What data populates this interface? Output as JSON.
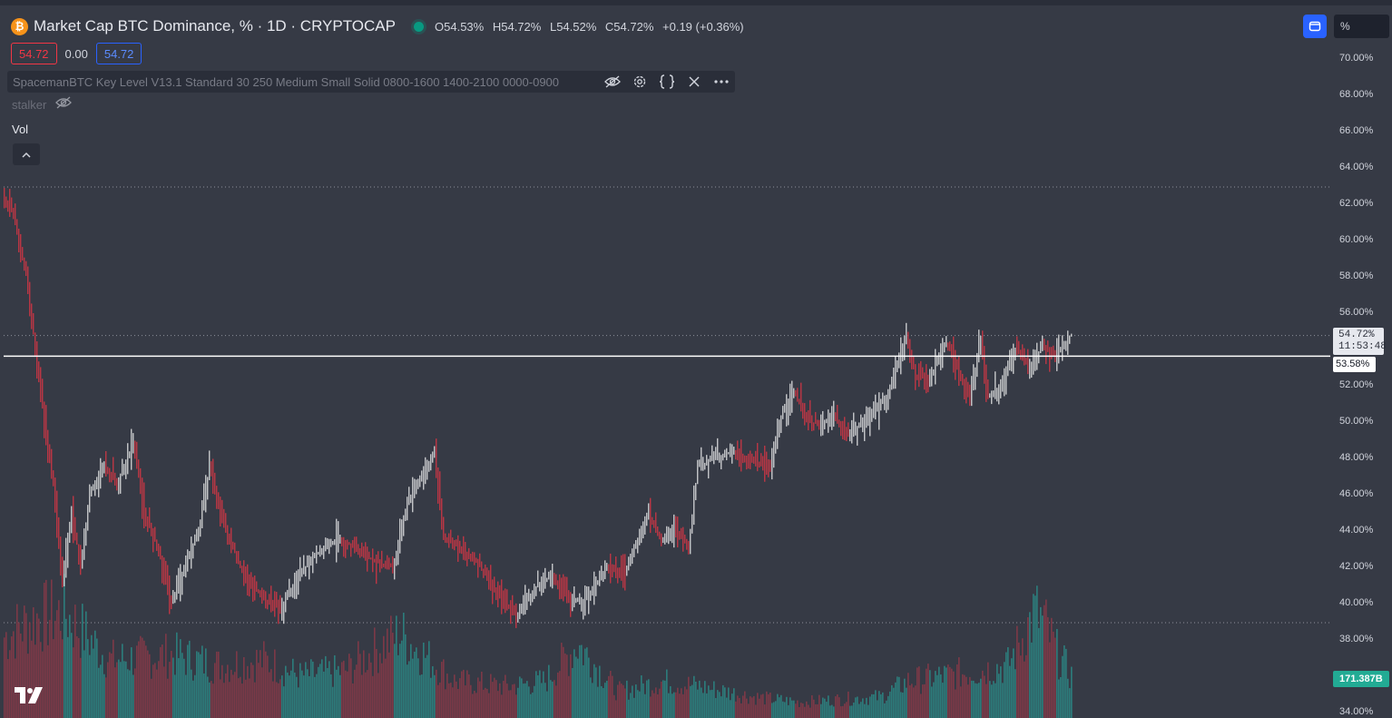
{
  "header": {
    "coin_symbol": "₿",
    "title": "Market Cap BTC Dominance, % · 1D · CRYPTOCAP",
    "ohlc": [
      {
        "label": "O",
        "value": "54.53%"
      },
      {
        "label": "H",
        "value": "54.72%"
      },
      {
        "label": "L",
        "value": "54.52%"
      },
      {
        "label": "C",
        "value": "54.72%"
      }
    ],
    "change": "+0.19 (+0.36%)"
  },
  "price_boxes": {
    "sell": "54.72",
    "spread": "0.00",
    "buy": "54.72"
  },
  "indicator": {
    "name": "SpacemanBTC Key Level V13.1 Standard 30 250 Medium Small Solid 0800-1600 1400-2100 0000-0900"
  },
  "stalker": {
    "name": "stalker"
  },
  "volume_label": "Vol",
  "axis": {
    "unit": "%",
    "price_tag": {
      "value": "54.72%",
      "countdown": "11:53:48"
    },
    "level_tag": "53.58%",
    "volume_tag": "171.387B"
  },
  "colors": {
    "background": "#363a45",
    "up": "#ffffff",
    "down": "#f23645",
    "vol_up": "#2a8a86",
    "vol_down": "#8a3a48",
    "accent": "#2962ff"
  },
  "chart_data": {
    "type": "line",
    "title": "Market Cap BTC Dominance, % · 1D · CRYPTOCAP",
    "ylabel": "%",
    "ylim": [
      34,
      72
    ],
    "y_ticks": [
      "70.00%",
      "68.00%",
      "66.00%",
      "64.00%",
      "62.00%",
      "60.00%",
      "58.00%",
      "56.00%",
      "52.00%",
      "50.00%",
      "48.00%",
      "46.00%",
      "44.00%",
      "42.00%",
      "40.00%",
      "38.00%",
      "34.00%"
    ],
    "y_tick_values": [
      70,
      68,
      66,
      64,
      62,
      60,
      58,
      56,
      52,
      50,
      48,
      46,
      44,
      42,
      40,
      38,
      34
    ],
    "grid": false,
    "dotted_levels": [
      62.9,
      54.72,
      38.9
    ],
    "key_level": 53.58,
    "series": [
      {
        "name": "BTC Dominance",
        "x": [
          0,
          15,
          30,
          40,
          50,
          60,
          70,
          80,
          90,
          100,
          115,
          130,
          148,
          160,
          175,
          190,
          205,
          220,
          232,
          250,
          270,
          290,
          310,
          325,
          345,
          360,
          375,
          395,
          415,
          435,
          450,
          465,
          480,
          490,
          510,
          530,
          550,
          570,
          590,
          610,
          630,
          650,
          670,
          690,
          700,
          715,
          730,
          745,
          760,
          770,
          790,
          810,
          830,
          850,
          860,
          875,
          890,
          905,
          920,
          935,
          950,
          965,
          980,
          1000,
          1010,
          1025,
          1045,
          1060,
          1070,
          1082,
          1090,
          1105,
          1120,
          1135,
          1150,
          1165,
          1180
        ],
        "y": [
          62.8,
          61.5,
          58,
          54,
          50,
          46.5,
          41,
          45,
          42,
          46,
          47.5,
          46.5,
          48.8,
          45,
          43,
          40,
          42,
          44,
          47.5,
          44,
          41.5,
          40.3,
          39.6,
          41,
          42.5,
          43,
          43.6,
          43,
          42.2,
          42,
          45.5,
          47,
          48.2,
          43.5,
          43,
          42,
          40.5,
          39.2,
          40.8,
          41.5,
          40,
          40.3,
          42,
          41.5,
          43,
          44.8,
          43.5,
          44,
          43,
          47.5,
          48,
          48.3,
          47.8,
          47.5,
          50,
          51.8,
          50,
          49.8,
          50.4,
          49.2,
          49.8,
          50.5,
          51.5,
          54.6,
          52.5,
          52.3,
          54.4,
          52.5,
          51.2,
          54.5,
          51.3,
          52,
          54,
          53,
          54.1,
          53.6,
          54.72
        ]
      },
      {
        "name": "Vol",
        "x": [
          0,
          40,
          70,
          120,
          190,
          240,
          290,
          330,
          380,
          440,
          500,
          560,
          600,
          636,
          680,
          730,
          770,
          830,
          880,
          930,
          970,
          1000,
          1040,
          1080,
          1110,
          1140,
          1150,
          1165,
          1180
        ],
        "y": [
          0.75,
          0.95,
          1.0,
          0.55,
          0.6,
          0.5,
          0.55,
          0.4,
          0.45,
          0.8,
          0.35,
          0.3,
          0.35,
          0.7,
          0.25,
          0.35,
          0.3,
          0.2,
          0.15,
          0.18,
          0.2,
          0.35,
          0.4,
          0.45,
          0.5,
          1.0,
          0.9,
          0.6,
          0.4
        ]
      }
    ]
  }
}
